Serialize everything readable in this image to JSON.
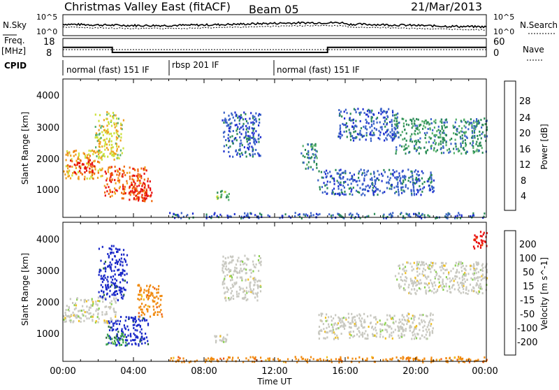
{
  "header": {
    "station": "Christmas Valley East (fitACF)",
    "beam": "Beam 05",
    "date": "21/Mar/2013"
  },
  "noise_panel": {
    "left_label": "N.Sky",
    "right_label": "N.Search",
    "left_ticks": [
      "10^5",
      "10^0"
    ],
    "right_ticks": [
      "10^5",
      "10^0"
    ]
  },
  "freq_panel": {
    "left_label_1": "Freq.",
    "left_label_2": "[MHz]",
    "right_label": "Nave",
    "left_ticks": [
      "18",
      "8"
    ],
    "right_ticks": [
      "60",
      "0"
    ],
    "freq_segments": [
      {
        "start_h": 0,
        "end_h": 2.8,
        "value": 13.5
      },
      {
        "start_h": 2.8,
        "end_h": 15.0,
        "value": 10.5
      },
      {
        "start_h": 15.0,
        "end_h": 24,
        "value": 13.5
      }
    ]
  },
  "cpid_panel": {
    "label": "CPID",
    "segments": [
      {
        "start_h": 0,
        "end_h": 6.0,
        "text": "normal (fast) 151 IF"
      },
      {
        "start_h": 6.0,
        "end_h": 12.0,
        "text": "rbsp 201 IF"
      },
      {
        "start_h": 12.0,
        "end_h": 24,
        "text": "normal (fast) 151 IF"
      }
    ]
  },
  "x_axis": {
    "label": "Time UT",
    "ticks": [
      "00:00",
      "04:00",
      "08:00",
      "12:00",
      "16:00",
      "20:00",
      "00:00"
    ],
    "range_h": [
      0,
      24
    ]
  },
  "power_panel": {
    "ylabel": "Slant Range [km]",
    "yticks": [
      "4000",
      "3000",
      "2000",
      "1000"
    ],
    "colorbar_label": "Power [dB]",
    "colorbar_ticks": [
      "28",
      "24",
      "20",
      "16",
      "12",
      "8",
      "4"
    ],
    "colors": [
      "#1f2fd0",
      "#3a62c8",
      "#2a8a55",
      "#55b06a",
      "#cde03a",
      "#f0a020",
      "#f06a10",
      "#e81010"
    ]
  },
  "velocity_panel": {
    "ylabel": "Slant Range [km]",
    "yticks": [
      "4000",
      "3000",
      "2000",
      "1000"
    ],
    "colorbar_label": "Velocity [m s^-1]",
    "colorbar_ticks": [
      "200",
      "100",
      "50",
      "15",
      "-15",
      "-50",
      "-100",
      "-200"
    ],
    "colors": [
      "#1a28c8",
      "#2a6a3a",
      "#3aa050",
      "#8ad050",
      "#c8c8c0",
      "#f0c020",
      "#f08a10",
      "#f05a10",
      "#e81010"
    ]
  },
  "chart_data": {
    "type": "heatmap",
    "x_range_h": [
      0,
      24
    ],
    "y_range_km": [
      180,
      4500
    ],
    "power_regions": [
      {
        "t0": 0.0,
        "t1": 2.2,
        "r0": 1400,
        "r1": 2300,
        "level": 5
      },
      {
        "t0": 0.3,
        "t1": 1.8,
        "r0": 1600,
        "r1": 2000,
        "level": 7
      },
      {
        "t0": 1.8,
        "t1": 3.4,
        "r0": 2000,
        "r1": 3500,
        "level": 4
      },
      {
        "t0": 2.3,
        "t1": 4.8,
        "r0": 800,
        "r1": 1800,
        "level": 6
      },
      {
        "t0": 3.7,
        "t1": 5.0,
        "r0": 700,
        "r1": 1400,
        "level": 7
      },
      {
        "t0": 8.6,
        "t1": 9.4,
        "r0": 750,
        "r1": 1050,
        "level": 3
      },
      {
        "t0": 9.0,
        "t1": 11.2,
        "r0": 2100,
        "r1": 3500,
        "level": 1
      },
      {
        "t0": 13.4,
        "t1": 14.4,
        "r0": 1700,
        "r1": 2500,
        "level": 2
      },
      {
        "t0": 14.4,
        "t1": 21.0,
        "r0": 900,
        "r1": 1700,
        "level": 1
      },
      {
        "t0": 18.8,
        "t1": 24.0,
        "r0": 2200,
        "r1": 3300,
        "level": 2
      },
      {
        "t0": 6.0,
        "t1": 24.0,
        "r0": 180,
        "r1": 350,
        "level": 1
      },
      {
        "t0": 15.5,
        "t1": 19.0,
        "r0": 2600,
        "r1": 3600,
        "level": 1
      }
    ],
    "velocity_regions": [
      {
        "t0": 0.0,
        "t1": 3.0,
        "r0": 1400,
        "r1": 2200,
        "vel": 0
      },
      {
        "t0": 2.0,
        "t1": 3.6,
        "r0": 2100,
        "r1": 3800,
        "vel": 200
      },
      {
        "t0": 2.5,
        "t1": 4.8,
        "r0": 700,
        "r1": 1600,
        "vel": 200
      },
      {
        "t0": 2.4,
        "t1": 3.6,
        "r0": 700,
        "r1": 1100,
        "vel": 50
      },
      {
        "t0": 4.2,
        "t1": 5.6,
        "r0": 1600,
        "r1": 2600,
        "vel": -50
      },
      {
        "t0": 8.5,
        "t1": 9.3,
        "r0": 750,
        "r1": 1050,
        "vel": 0
      },
      {
        "t0": 9.0,
        "t1": 11.2,
        "r0": 2100,
        "r1": 3500,
        "vel": 0
      },
      {
        "t0": 14.4,
        "t1": 21.0,
        "r0": 900,
        "r1": 1700,
        "vel": 0
      },
      {
        "t0": 18.8,
        "t1": 24.0,
        "r0": 2300,
        "r1": 3300,
        "vel": 0
      },
      {
        "t0": 6.0,
        "t1": 24.0,
        "r0": 180,
        "r1": 350,
        "vel": -50
      },
      {
        "t0": 23.2,
        "t1": 24.0,
        "r0": 3700,
        "r1": 4300,
        "vel": -200
      }
    ]
  }
}
